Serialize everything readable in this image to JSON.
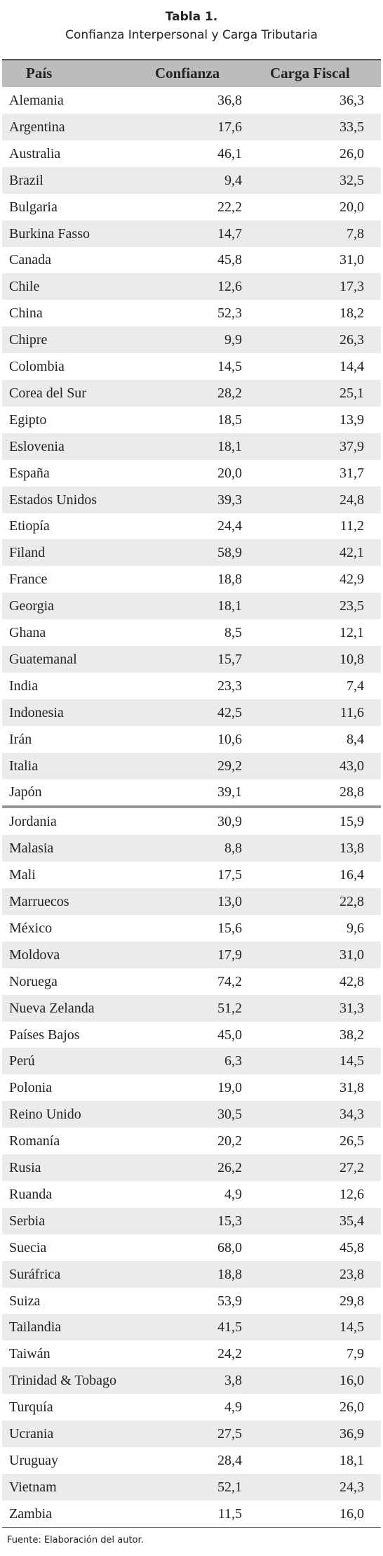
{
  "title": "Tabla 1.",
  "subtitle": "Confianza Interpersonal y Carga Tributaria",
  "table": {
    "headers": [
      "País",
      "Confianza",
      "Carga Fiscal"
    ],
    "rows": [
      [
        "Alemania",
        "36,8",
        "36,3"
      ],
      [
        "Argentina",
        "17,6",
        "33,5"
      ],
      [
        "Australia",
        "46,1",
        "26,0"
      ],
      [
        "Brazil",
        "9,4",
        "32,5"
      ],
      [
        "Bulgaria",
        "22,2",
        "20,0"
      ],
      [
        "Burkina Fasso",
        "14,7",
        "7,8"
      ],
      [
        "Canada",
        "45,8",
        "31,0"
      ],
      [
        "Chile",
        "12,6",
        "17,3"
      ],
      [
        "China",
        "52,3",
        "18,2"
      ],
      [
        "Chipre",
        "9,9",
        "26,3"
      ],
      [
        "Colombia",
        "14,5",
        "14,4"
      ],
      [
        "Corea del Sur",
        "28,2",
        "25,1"
      ],
      [
        "Egipto",
        "18,5",
        "13,9"
      ],
      [
        "Eslovenia",
        "18,1",
        "37,9"
      ],
      [
        "España",
        "20,0",
        "31,7"
      ],
      [
        "Estados Unidos",
        "39,3",
        "24,8"
      ],
      [
        "Etiopía",
        "24,4",
        "11,2"
      ],
      [
        "Filand",
        "58,9",
        "42,1"
      ],
      [
        "France",
        "18,8",
        "42,9"
      ],
      [
        "Georgia",
        "18,1",
        "23,5"
      ],
      [
        "Ghana",
        "8,5",
        "12,1"
      ],
      [
        "Guatemanal",
        "15,7",
        "10,8"
      ],
      [
        "India",
        "23,3",
        "7,4"
      ],
      [
        "Indonesia",
        "42,5",
        "11,6"
      ],
      [
        "Irán",
        "10,6",
        "8,4"
      ],
      [
        "Italia",
        "29,2",
        "43,0"
      ],
      [
        "Japón",
        "39,1",
        "28,8"
      ],
      [
        "Jordania",
        "30,9",
        "15,9"
      ],
      [
        "Malasia",
        "8,8",
        "13,8"
      ],
      [
        "Mali",
        "17,5",
        "16,4"
      ],
      [
        "Marruecos",
        "13,0",
        "22,8"
      ],
      [
        "México",
        "15,6",
        "9,6"
      ],
      [
        "Moldova",
        "17,9",
        "31,0"
      ],
      [
        "Noruega",
        "74,2",
        "42,8"
      ],
      [
        "Nueva Zelanda",
        "51,2",
        "31,3"
      ],
      [
        "Países Bajos",
        "45,0",
        "38,2"
      ],
      [
        "Perú",
        "6,3",
        "14,5"
      ],
      [
        "Polonia",
        "19,0",
        "31,8"
      ],
      [
        "Reino Unido",
        "30,5",
        "34,3"
      ],
      [
        "Romanía",
        "20,2",
        "26,5"
      ],
      [
        "Rusia",
        "26,2",
        "27,2"
      ],
      [
        "Ruanda",
        "4,9",
        "12,6"
      ],
      [
        "Serbia",
        "15,3",
        "35,4"
      ],
      [
        "Suecia",
        "68,0",
        "45,8"
      ],
      [
        "Suráfrica",
        "18,8",
        "23,8"
      ],
      [
        "Suiza",
        "53,9",
        "29,8"
      ],
      [
        "Tailandia",
        "41,5",
        "14,5"
      ],
      [
        "Taiwán",
        "24,2",
        "7,9"
      ],
      [
        "Trinidad & Tobago",
        "3,8",
        "16,0"
      ],
      [
        "Turquía",
        "4,9",
        "26,0"
      ],
      [
        "Ucrania",
        "27,5",
        "36,9"
      ],
      [
        "Uruguay",
        "28,4",
        "18,1"
      ],
      [
        "Vietnam",
        "52,1",
        "24,3"
      ],
      [
        "Zambia",
        "11,5",
        "16,0"
      ]
    ]
  },
  "footnote": "Fuente: Elaboración del autor."
}
